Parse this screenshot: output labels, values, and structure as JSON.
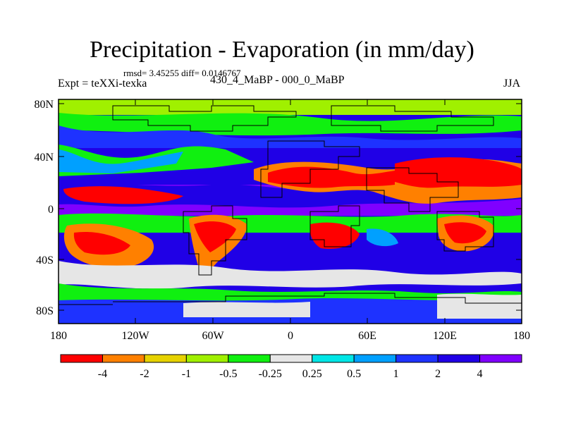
{
  "title": "Precipitation - Evaporation (in mm/day)",
  "stats": "rmsd= 3.45255  diff= 0.0146767",
  "experiment": "Expt = teXXi-texka",
  "period": "430_4_MaBP - 000_0_MaBP",
  "season": "JJA",
  "map": {
    "lat_ticks": [
      "80N",
      "40N",
      "0",
      "40S",
      "80S"
    ],
    "lon_ticks": [
      "180",
      "120W",
      "60W",
      "0",
      "60E",
      "120E",
      "180"
    ]
  },
  "colorbar": {
    "labels": [
      "-4",
      "-2",
      "-1",
      "-0.5",
      "-0.25",
      "0.25",
      "0.5",
      "1",
      "2",
      "4"
    ],
    "colors": [
      "#ff0000",
      "#ff8000",
      "#e6d200",
      "#a0f000",
      "#10f010",
      "#e6e6e6",
      "#00e6e6",
      "#00a0ff",
      "#1e32ff",
      "#2000e6",
      "#8000ff"
    ]
  }
}
